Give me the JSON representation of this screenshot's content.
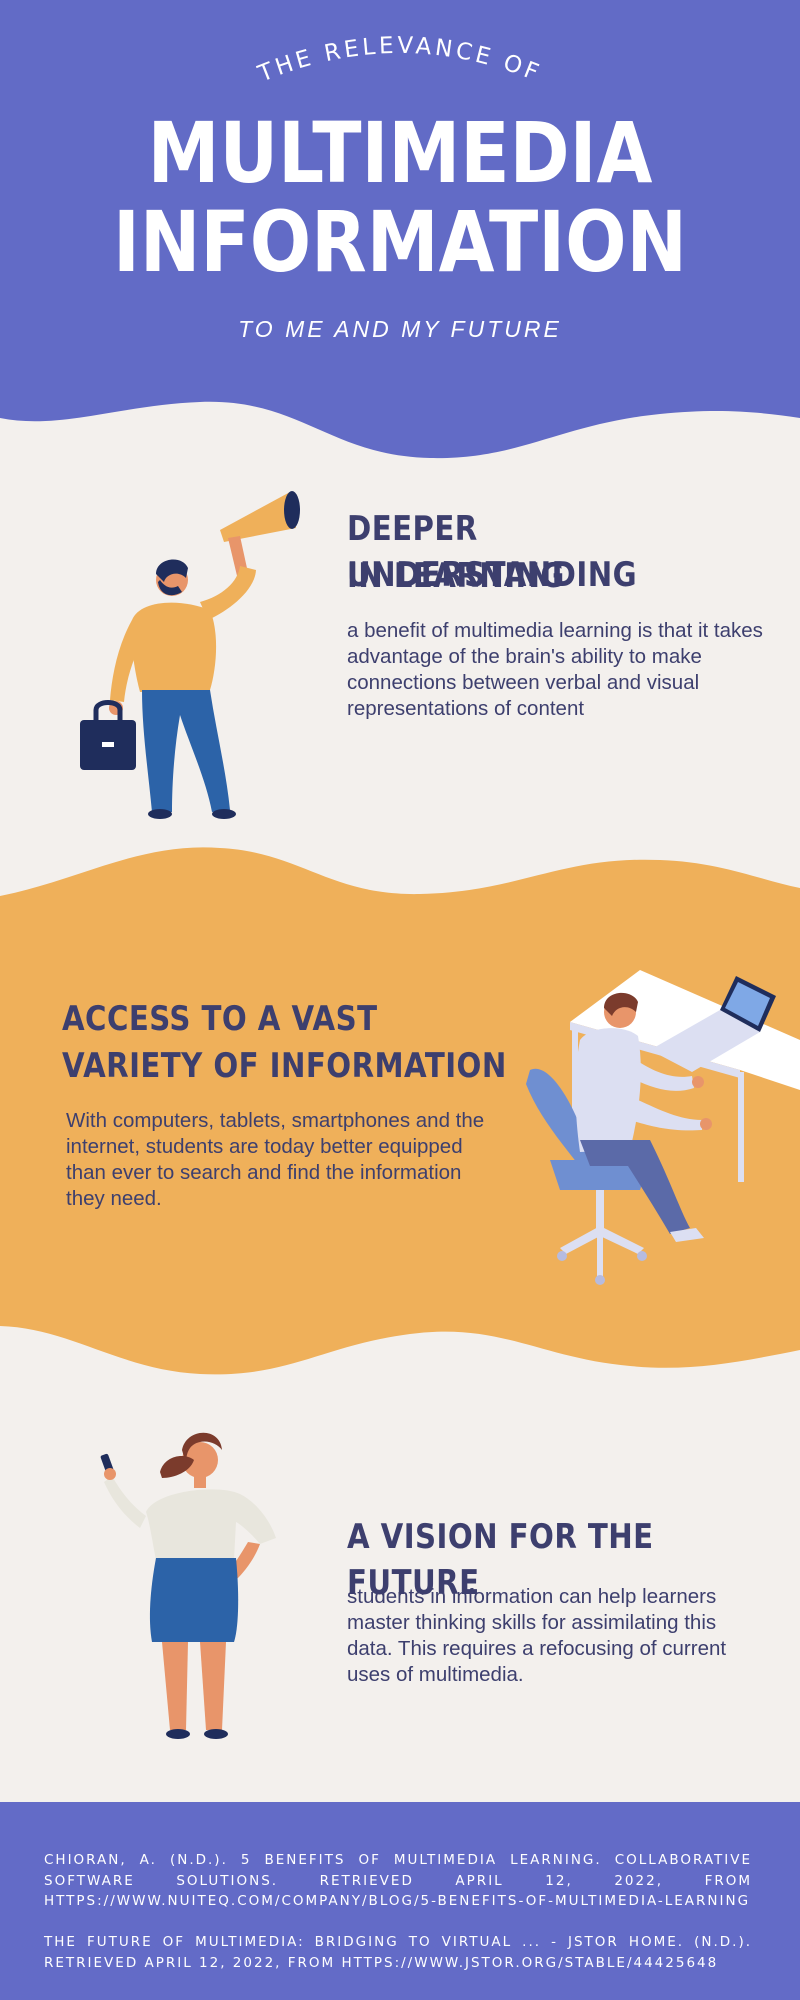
{
  "header": {
    "arc_text": "THE RELEVANCE OF",
    "title_line1": "MULTIMEDIA",
    "title_line2": "INFORMATION",
    "subtitle": "TO ME AND MY FUTURE"
  },
  "sections": [
    {
      "heading_line1": "DEEPER UNDERSTANDING",
      "heading_line2": "IN LEARNING",
      "body": "a benefit of multimedia learning is that it takes advantage of the brain's ability to make connections between verbal and visual representations of content",
      "illustration": "man-with-megaphone-and-briefcase"
    },
    {
      "heading_line1": "ACCESS TO A VAST",
      "heading_line2": "VARIETY OF INFORMATION",
      "body": "With computers, tablets, smartphones and the internet, students are today better equipped than ever to search and find the information they need.",
      "illustration": "man-working-on-laptop-at-desk"
    },
    {
      "heading_line1": "A VISION FOR THE FUTURE",
      "body": "students in information can help learners master thinking skills for assimilating this data. This requires a refocusing of current uses of multimedia.",
      "illustration": "woman-holding-smartphone"
    }
  ],
  "references": [
    "Chioran, A. (n.d.). 5 benefits of multimedia learning. Collaborative Software Solutions. Retrieved April 12, 2022, from https://www.nuiteq.com/company/blog/5-benefits-of-multimedia-learning",
    "The future of multimedia: Bridging to virtual ... - JSTOR HOME. (n.d.). Retrieved April 12, 2022, from https://www.jstor.org/stable/44425648"
  ],
  "colors": {
    "header_bg": "#626bc6",
    "cream_bg": "#f3f0ed",
    "orange_band": "#efb05a",
    "heading_text": "#3d3f6e",
    "footer_bg": "#636bc7"
  }
}
